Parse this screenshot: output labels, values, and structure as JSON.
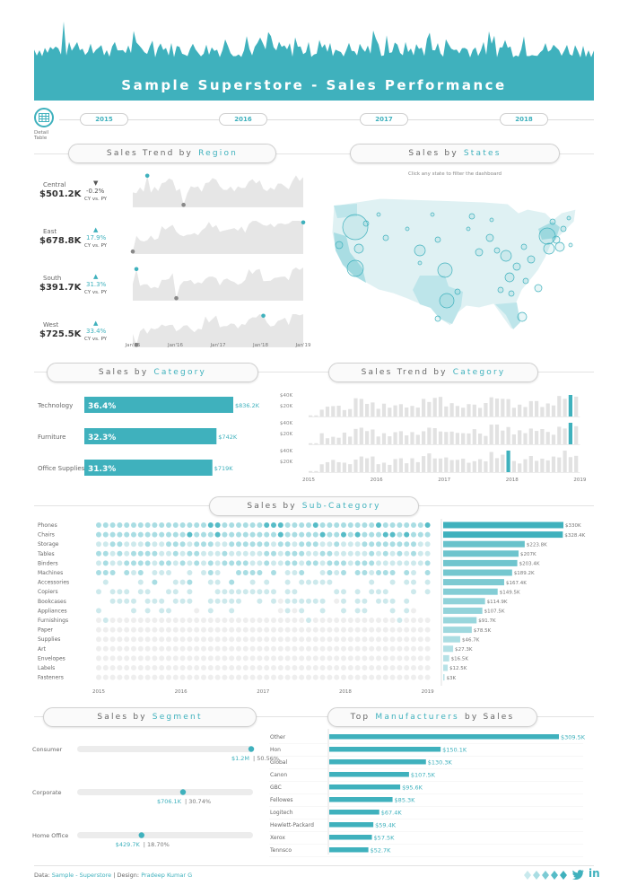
{
  "header": {
    "title": "Sample Superstore - Sales Performance"
  },
  "colors": {
    "accent": "#3fb1bd",
    "grey": "#e4e4e4",
    "dark": "#888888"
  },
  "detail_table": {
    "line1": "Detail",
    "line2": "Table",
    "icon": "table-icon"
  },
  "years": [
    "2015",
    "2016",
    "2017",
    "2018"
  ],
  "titles": {
    "trend_region": {
      "plain": "Sales Trend by",
      "accent": "Region"
    },
    "states": {
      "plain": "Sales by",
      "accent": "States"
    },
    "category": {
      "plain": "Sales by",
      "accent": "Category"
    },
    "trend_category": {
      "plain": "Sales Trend by",
      "accent": "Category"
    },
    "subcategory": {
      "plain": "Sales by",
      "accent": "Sub-Category"
    },
    "segment": {
      "plain": "Sales by",
      "accent": "Segment"
    },
    "manufacturers": {
      "plain": "Top",
      "accent": "Manufacturers",
      "suffix": "by Sales"
    }
  },
  "states_hint": "Click any state to filter the dashboard",
  "regions": [
    {
      "name": "Central",
      "value": "$501.2K",
      "pct": "-0.2%",
      "dir": "down",
      "sub": "CY vs. PY"
    },
    {
      "name": "East",
      "value": "$678.8K",
      "pct": "17.9%",
      "dir": "up",
      "sub": "CY vs. PY"
    },
    {
      "name": "South",
      "value": "$391.7K",
      "pct": "31.3%",
      "dir": "up",
      "sub": "CY vs. PY"
    },
    {
      "name": "West",
      "value": "$725.5K",
      "pct": "33.4%",
      "dir": "up",
      "sub": "CY vs. PY"
    }
  ],
  "region_xticks": [
    "Jan'15",
    "Jan'16",
    "Jan'17",
    "Jan'18",
    "Jan'19"
  ],
  "trend_cat_yticks": [
    "$40K",
    "$20K"
  ],
  "trend_cat_xticks": [
    "2015",
    "2016",
    "2017",
    "2018",
    "2019"
  ],
  "subcat_xticks": [
    "2015",
    "2016",
    "2017",
    "2018",
    "2019"
  ],
  "footer": {
    "prefix": "Data:",
    "data_name": "Sample - Superstore",
    "sep": "| Design:",
    "designer": "Pradeep Kumar G"
  },
  "chart_data": [
    {
      "type": "bar",
      "name": "category",
      "categories": [
        "Technology",
        "Furniture",
        "Office Supplies"
      ],
      "values": [
        836.2,
        742,
        719
      ],
      "value_labels": [
        "$836.2K",
        "$742K",
        "$719K"
      ],
      "share_labels": [
        "36.4%",
        "32.3%",
        "31.3%"
      ]
    },
    {
      "type": "bar",
      "name": "subcategory",
      "categories": [
        "Phones",
        "Chairs",
        "Storage",
        "Tables",
        "Binders",
        "Machines",
        "Accessories",
        "Copiers",
        "Bookcases",
        "Appliances",
        "Furnishings",
        "Paper",
        "Supplies",
        "Art",
        "Envelopes",
        "Labels",
        "Fasteners"
      ],
      "values": [
        330,
        328.4,
        223.8,
        207,
        203.4,
        189.2,
        167.4,
        149.5,
        114.9,
        107.5,
        91.7,
        78.5,
        46.7,
        27.3,
        16.5,
        12.5,
        3
      ],
      "value_labels": [
        "$330K",
        "$328.4K",
        "$223.8K",
        "$207K",
        "$203.4K",
        "$189.2K",
        "$167.4K",
        "$149.5K",
        "$114.9K",
        "$107.5K",
        "$91.7K",
        "$78.5K",
        "$46.7K",
        "$27.3K",
        "$16.5K",
        "$12.5K",
        "$3K"
      ]
    },
    {
      "type": "bar",
      "name": "segment",
      "categories": [
        "Consumer",
        "Corporate",
        "Home Office"
      ],
      "values": [
        50.56,
        30.74,
        18.7
      ],
      "value_labels": [
        "$1.2M",
        "$706.1K",
        "$429.7K"
      ],
      "share_labels": [
        "50.56%",
        "30.74%",
        "18.70%"
      ]
    },
    {
      "type": "bar",
      "name": "manufacturers",
      "categories": [
        "Other",
        "Hon",
        "Global",
        "Canon",
        "GBC",
        "Fellowes",
        "Logitech",
        "Hewlett-Packard",
        "Xerox",
        "Tennsco"
      ],
      "values": [
        309.5,
        150.1,
        130.3,
        107.5,
        95.6,
        85.3,
        67.4,
        59.4,
        57.5,
        52.7
      ],
      "value_labels": [
        "$309.5K",
        "$150.1K",
        "$130.3K",
        "$107.5K",
        "$95.6K",
        "$85.3K",
        "$67.4K",
        "$59.4K",
        "$57.5K",
        "$52.7K"
      ]
    }
  ]
}
